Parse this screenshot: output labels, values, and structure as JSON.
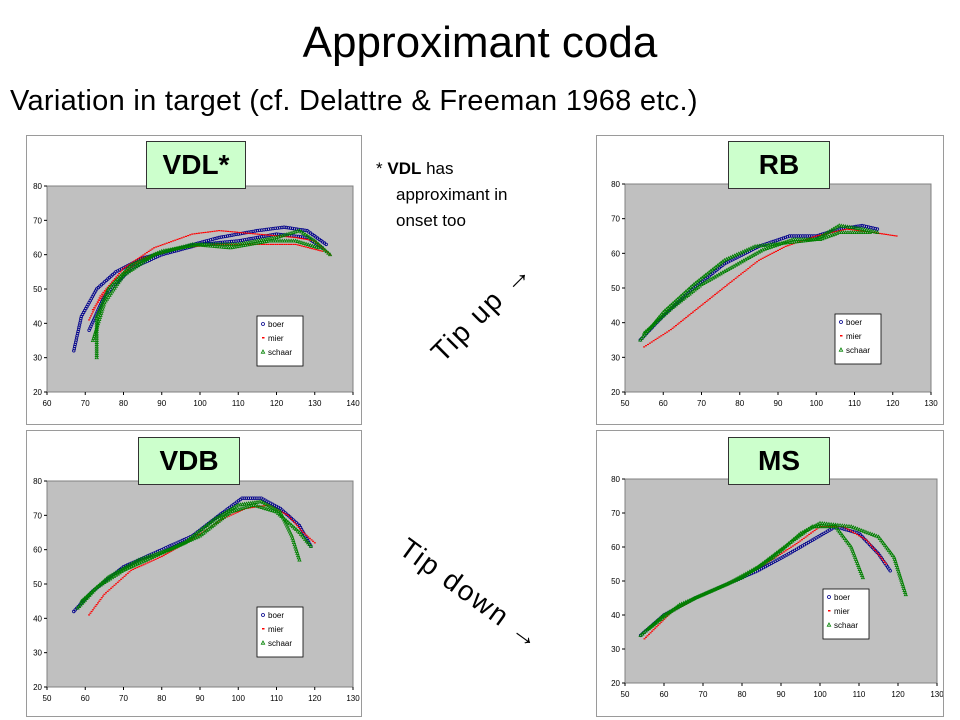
{
  "title": "Approximant coda",
  "subtitle": "Variation in target (cf. Delattre & Freeman 1968 etc.)",
  "note": {
    "star": "*",
    "bold": "VDL",
    "line1_rest": " has",
    "line2": "approximant in",
    "line3": "onset too"
  },
  "tip_up": "Tip up →",
  "tip_down": "Tip down →",
  "colors": {
    "boer": "#00008b",
    "mier": "#ff0000",
    "schaar": "#008000",
    "plot_bg": "#c0c0c0",
    "tag_bg": "#ccffcc"
  },
  "chart_data": [
    {
      "type": "scatter",
      "label": "VDL*",
      "xlim": [
        60,
        140
      ],
      "ylim": [
        20,
        80
      ],
      "xticks": [
        60,
        70,
        80,
        90,
        100,
        110,
        120,
        130,
        140
      ],
      "yticks": [
        20,
        30,
        40,
        50,
        60,
        70,
        80
      ],
      "legend": [
        "boer",
        "mier",
        "schaar"
      ],
      "series": [
        {
          "name": "boer",
          "curves": [
            [
              [
                67,
                32
              ],
              [
                69,
                42
              ],
              [
                73,
                50
              ],
              [
                78,
                55
              ],
              [
                85,
                59
              ],
              [
                95,
                62
              ],
              [
                105,
                65
              ],
              [
                115,
                67
              ],
              [
                122,
                68
              ],
              [
                128,
                67
              ],
              [
                133,
                63
              ]
            ],
            [
              [
                71,
                38
              ],
              [
                75,
                48
              ],
              [
                82,
                56
              ],
              [
                90,
                60
              ],
              [
                100,
                63
              ],
              [
                110,
                64
              ],
              [
                120,
                66
              ],
              [
                128,
                65
              ],
              [
                132,
                62
              ]
            ]
          ]
        },
        {
          "name": "mier",
          "curves": [
            [
              [
                71,
                41
              ],
              [
                74,
                48
              ],
              [
                80,
                56
              ],
              [
                88,
                62
              ],
              [
                98,
                66
              ],
              [
                105,
                67
              ],
              [
                115,
                66
              ],
              [
                125,
                65
              ],
              [
                130,
                64
              ],
              [
                134,
                60
              ]
            ],
            [
              [
                72,
                44
              ],
              [
                77,
                52
              ],
              [
                85,
                59
              ],
              [
                95,
                62
              ],
              [
                105,
                63
              ],
              [
                115,
                63
              ],
              [
                125,
                63
              ],
              [
                132,
                61
              ]
            ]
          ]
        },
        {
          "name": "schaar",
          "curves": [
            [
              [
                73,
                30
              ],
              [
                73,
                42
              ],
              [
                76,
                50
              ],
              [
                82,
                57
              ],
              [
                90,
                61
              ],
              [
                100,
                63
              ],
              [
                110,
                63
              ],
              [
                120,
                65
              ],
              [
                126,
                67
              ],
              [
                130,
                64
              ],
              [
                134,
                60
              ]
            ],
            [
              [
                72,
                35
              ],
              [
                75,
                46
              ],
              [
                80,
                54
              ],
              [
                88,
                60
              ],
              [
                98,
                63
              ],
              [
                108,
                62
              ],
              [
                118,
                64
              ],
              [
                125,
                64
              ],
              [
                131,
                62
              ]
            ]
          ]
        }
      ]
    },
    {
      "type": "scatter",
      "label": "RB",
      "xlim": [
        50,
        130
      ],
      "ylim": [
        20,
        80
      ],
      "xticks": [
        50,
        60,
        70,
        80,
        90,
        100,
        110,
        120,
        130
      ],
      "yticks": [
        20,
        30,
        40,
        50,
        60,
        70,
        80
      ],
      "legend": [
        "boer",
        "mier",
        "schaar"
      ],
      "series": [
        {
          "name": "boer",
          "curves": [
            [
              [
                54,
                35
              ],
              [
                60,
                42
              ],
              [
                68,
                50
              ],
              [
                76,
                57
              ],
              [
                85,
                62
              ],
              [
                93,
                65
              ],
              [
                100,
                65
              ],
              [
                106,
                67
              ],
              [
                112,
                68
              ],
              [
                116,
                67
              ]
            ]
          ]
        },
        {
          "name": "mier",
          "curves": [
            [
              [
                55,
                33
              ],
              [
                62,
                38
              ],
              [
                70,
                45
              ],
              [
                78,
                52
              ],
              [
                85,
                58
              ],
              [
                92,
                62
              ],
              [
                100,
                65
              ],
              [
                108,
                67
              ],
              [
                115,
                66
              ],
              [
                121,
                65
              ]
            ]
          ]
        },
        {
          "name": "schaar",
          "curves": [
            [
              [
                54,
                35
              ],
              [
                60,
                43
              ],
              [
                68,
                51
              ],
              [
                76,
                58
              ],
              [
                84,
                62
              ],
              [
                92,
                63
              ],
              [
                100,
                64
              ],
              [
                106,
                68
              ],
              [
                112,
                67
              ],
              [
                116,
                66
              ]
            ],
            [
              [
                55,
                37
              ],
              [
                62,
                44
              ],
              [
                70,
                51
              ],
              [
                78,
                56
              ],
              [
                86,
                61
              ],
              [
                94,
                64
              ],
              [
                101,
                64
              ],
              [
                106,
                66
              ],
              [
                114,
                66
              ]
            ]
          ]
        }
      ]
    },
    {
      "type": "scatter",
      "label": "VDB",
      "xlim": [
        50,
        130
      ],
      "ylim": [
        20,
        80
      ],
      "xticks": [
        50,
        60,
        70,
        80,
        90,
        100,
        110,
        120,
        130
      ],
      "yticks": [
        20,
        30,
        40,
        50,
        60,
        70,
        80
      ],
      "legend": [
        "boer",
        "mier",
        "schaar"
      ],
      "series": [
        {
          "name": "boer",
          "curves": [
            [
              [
                57,
                42
              ],
              [
                62,
                48
              ],
              [
                70,
                55
              ],
              [
                80,
                60
              ],
              [
                88,
                64
              ],
              [
                95,
                70
              ],
              [
                101,
                75
              ],
              [
                106,
                75
              ],
              [
                111,
                72
              ],
              [
                116,
                67
              ],
              [
                119,
                61
              ]
            ]
          ]
        },
        {
          "name": "mier",
          "curves": [
            [
              [
                61,
                41
              ],
              [
                65,
                47
              ],
              [
                72,
                54
              ],
              [
                80,
                58
              ],
              [
                88,
                63
              ],
              [
                96,
                69
              ],
              [
                102,
                72
              ],
              [
                108,
                73
              ],
              [
                113,
                70
              ],
              [
                117,
                65
              ],
              [
                120,
                62
              ]
            ]
          ]
        },
        {
          "name": "schaar",
          "curves": [
            [
              [
                58,
                43
              ],
              [
                63,
                49
              ],
              [
                70,
                54
              ],
              [
                78,
                58
              ],
              [
                86,
                62
              ],
              [
                94,
                69
              ],
              [
                100,
                73
              ],
              [
                106,
                74
              ],
              [
                111,
                71
              ],
              [
                114,
                64
              ],
              [
                116,
                57
              ]
            ],
            [
              [
                59,
                45
              ],
              [
                66,
                52
              ],
              [
                74,
                57
              ],
              [
                82,
                60
              ],
              [
                90,
                64
              ],
              [
                98,
                71
              ],
              [
                104,
                73
              ],
              [
                110,
                71
              ],
              [
                116,
                65
              ],
              [
                119,
                61
              ]
            ]
          ]
        }
      ]
    },
    {
      "type": "scatter",
      "label": "MS",
      "xlim": [
        50,
        130
      ],
      "ylim": [
        20,
        80
      ],
      "xticks": [
        50,
        60,
        70,
        80,
        90,
        100,
        110,
        120,
        130
      ],
      "yticks": [
        20,
        30,
        40,
        50,
        60,
        70,
        80
      ],
      "legend": [
        "boer",
        "mier",
        "schaar"
      ],
      "series": [
        {
          "name": "boer",
          "curves": [
            [
              [
                54,
                34
              ],
              [
                60,
                40
              ],
              [
                68,
                45
              ],
              [
                76,
                49
              ],
              [
                84,
                53
              ],
              [
                92,
                58
              ],
              [
                98,
                62
              ],
              [
                104,
                66
              ],
              [
                110,
                64
              ],
              [
                115,
                58
              ],
              [
                118,
                53
              ]
            ]
          ]
        },
        {
          "name": "mier",
          "curves": [
            [
              [
                55,
                33
              ],
              [
                62,
                41
              ],
              [
                70,
                46
              ],
              [
                78,
                50
              ],
              [
                86,
                55
              ],
              [
                94,
                61
              ],
              [
                100,
                66
              ],
              [
                106,
                66
              ],
              [
                112,
                62
              ],
              [
                117,
                55
              ]
            ]
          ]
        },
        {
          "name": "schaar",
          "curves": [
            [
              [
                54,
                34
              ],
              [
                60,
                40
              ],
              [
                68,
                45
              ],
              [
                76,
                49
              ],
              [
                84,
                54
              ],
              [
                92,
                61
              ],
              [
                98,
                66
              ],
              [
                104,
                66
              ],
              [
                108,
                60
              ],
              [
                111,
                51
              ]
            ],
            [
              [
                56,
                36
              ],
              [
                64,
                43
              ],
              [
                72,
                47
              ],
              [
                80,
                51
              ],
              [
                88,
                57
              ],
              [
                95,
                64
              ],
              [
                100,
                67
              ],
              [
                108,
                66
              ],
              [
                115,
                63
              ],
              [
                119,
                57
              ],
              [
                122,
                46
              ]
            ]
          ]
        }
      ]
    }
  ]
}
